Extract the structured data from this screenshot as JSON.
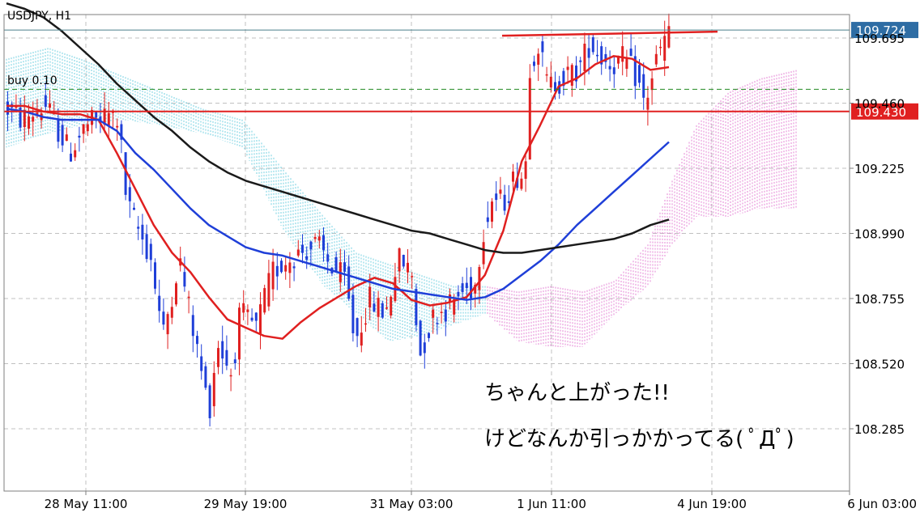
{
  "chart_data": {
    "type": "candlestick",
    "title": "USDJPY, H1",
    "symbol": "USDJPY",
    "timeframe": "H1",
    "y_ticks": [
      109.695,
      109.46,
      109.225,
      108.99,
      108.755,
      108.52,
      108.285
    ],
    "ylim": [
      108.08,
      109.82
    ],
    "x_ticks": [
      "28 May 11:00",
      "29 May 19:00",
      "31 May 03:00",
      "1 Jun 11:00",
      "4 Jun 19:00",
      "6 Jun 03:00"
    ],
    "grid": true,
    "price_labels": [
      {
        "value": 109.724,
        "text": "109.724",
        "color": "#2e6da4",
        "role": "current price"
      },
      {
        "value": 109.43,
        "text": "109.430",
        "color": "#e02020",
        "role": "horizontal line"
      }
    ],
    "order_line": {
      "label": "buy 0.10",
      "value": 109.51,
      "color": "#228b22"
    },
    "resistance_line": {
      "value": 109.715,
      "color": "#e02020"
    },
    "colors": {
      "bull": "#e02020",
      "bear": "#1f3fd8",
      "ema_fast": "#e02020",
      "ema_mid": "#1f3fd8",
      "ema_slow": "#1a1a1a",
      "cloud_bull": "#5bc8dc",
      "cloud_bear": "#e070d0",
      "grid": "#c0c0c0"
    },
    "ma_series": [
      {
        "color": "#e02020",
        "values": [
          109.45,
          109.45,
          109.43,
          109.42,
          109.42,
          109.4,
          109.28,
          109.15,
          109.02,
          108.92,
          108.85,
          108.76,
          108.68,
          108.65,
          108.62,
          108.61,
          108.67,
          108.72,
          108.76,
          108.8,
          108.83,
          108.81,
          108.75,
          108.73,
          108.74,
          108.76,
          108.84,
          109.0,
          109.25,
          109.38,
          109.52,
          109.55,
          109.6,
          109.63,
          109.62,
          109.58,
          109.59
        ]
      },
      {
        "color": "#1f3fd8",
        "values": [
          109.44,
          109.43,
          109.41,
          109.4,
          109.4,
          109.4,
          109.36,
          109.28,
          109.22,
          109.15,
          109.08,
          109.02,
          108.98,
          108.94,
          108.92,
          108.91,
          108.89,
          108.87,
          108.85,
          108.83,
          108.81,
          108.79,
          108.78,
          108.77,
          108.76,
          108.75,
          108.76,
          108.79,
          108.84,
          108.89,
          108.95,
          109.02,
          109.08,
          109.14,
          109.2,
          109.26,
          109.32
        ]
      },
      {
        "color": "#1a1a1a",
        "values": [
          109.82,
          109.8,
          109.77,
          109.72,
          109.66,
          109.6,
          109.53,
          109.47,
          109.41,
          109.36,
          109.3,
          109.25,
          109.21,
          109.18,
          109.16,
          109.14,
          109.12,
          109.1,
          109.08,
          109.06,
          109.04,
          109.02,
          109.0,
          108.99,
          108.97,
          108.95,
          108.93,
          108.92,
          108.92,
          108.93,
          108.94,
          108.95,
          108.96,
          108.97,
          108.99,
          109.02,
          109.04
        ]
      }
    ],
    "annotations": [
      {
        "text": "ちゃんと上がった!!"
      },
      {
        "text": "けどなんか引っかかってる( ﾟДﾟ)"
      }
    ]
  }
}
